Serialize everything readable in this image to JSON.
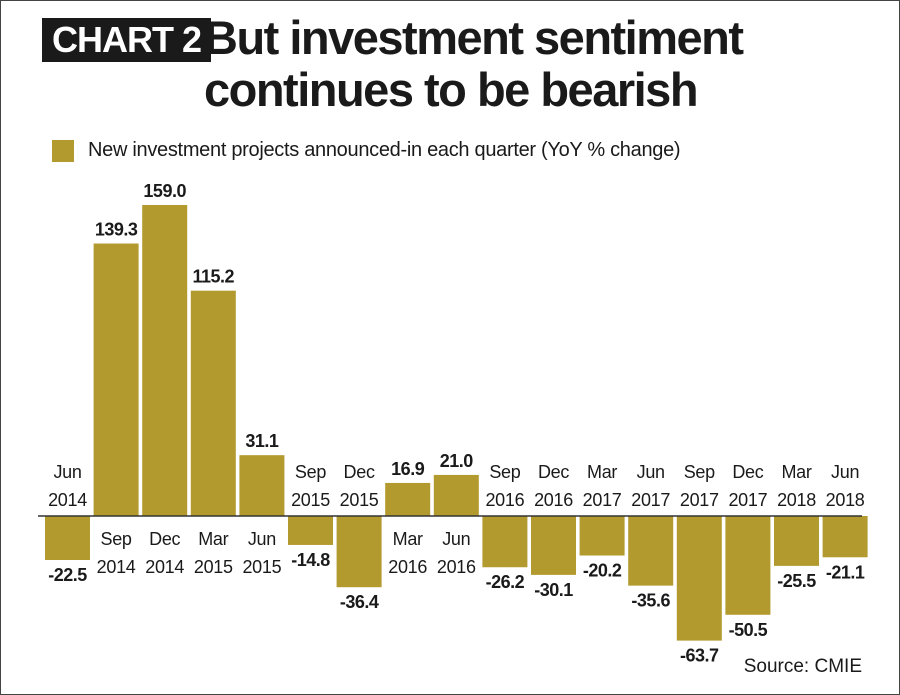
{
  "header": {
    "tag": "CHART 2",
    "title": "But investment sentiment continues to be bearish"
  },
  "legend": {
    "label": "New investment  projects announced-in each quarter (YoY % change)"
  },
  "source": "Source: CMIE",
  "colors": {
    "bar": "#b39a2f",
    "text": "#1a1a1a",
    "axis": "#333333",
    "tag_bg": "#1a1a1a"
  },
  "chart_data": {
    "type": "bar",
    "title": "But investment sentiment continues to be bearish",
    "xlabel": "",
    "ylabel": "",
    "grid": false,
    "legend_position": "top-left",
    "categories": [
      [
        "Jun",
        "2014"
      ],
      [
        "Sep",
        "2014"
      ],
      [
        "Dec",
        "2014"
      ],
      [
        "Mar",
        "2015"
      ],
      [
        "Jun",
        "2015"
      ],
      [
        "Sep",
        "2015"
      ],
      [
        "Dec",
        "2015"
      ],
      [
        "Mar",
        "2016"
      ],
      [
        "Jun",
        "2016"
      ],
      [
        "Sep",
        "2016"
      ],
      [
        "Dec",
        "2016"
      ],
      [
        "Mar",
        "2017"
      ],
      [
        "Jun",
        "2017"
      ],
      [
        "Sep",
        "2017"
      ],
      [
        "Dec",
        "2017"
      ],
      [
        "Mar",
        "2018"
      ],
      [
        "Jun",
        "2018"
      ]
    ],
    "series": [
      {
        "name": "New investment  projects announced-in each quarter (YoY % change)",
        "values": [
          -22.5,
          139.3,
          159.0,
          115.2,
          31.1,
          -14.8,
          -36.4,
          16.9,
          21.0,
          -26.2,
          -30.1,
          -20.2,
          -35.6,
          -63.7,
          -50.5,
          -25.5,
          -21.1
        ],
        "labels": [
          "-22.5",
          "139.3",
          "159.0",
          "115.2",
          "31.1",
          "-14.8",
          "-36.4",
          "16.9",
          "21.0",
          "-26.2",
          "-30.1",
          "-20.2",
          "-35.6",
          "-63.7",
          "-50.5",
          "-25.5",
          "-21.1"
        ]
      }
    ]
  }
}
